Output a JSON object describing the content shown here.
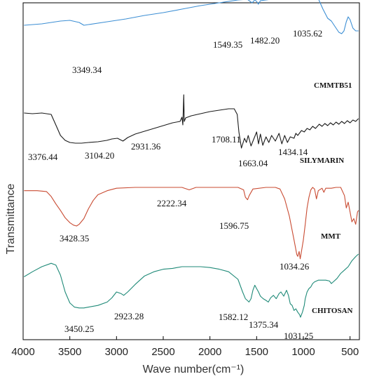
{
  "chart_data": {
    "type": "line",
    "xlabel": "Wave number(cm⁻¹)",
    "ylabel": "Transmittance",
    "xlim": [
      4000,
      400
    ],
    "x_reversed": true,
    "x_ticks": [
      4000,
      3500,
      3000,
      2500,
      2000,
      1500,
      1000,
      500
    ],
    "x_tick_labels": [
      "4000",
      "3500",
      "3000",
      "2500",
      "2000",
      "1500",
      "1000",
      "500"
    ],
    "y_ticks_shown": false,
    "grid": false,
    "legend": "none",
    "series": [
      {
        "name": "CMMTB51",
        "color": "#3d8fd4",
        "points": [
          [
            3990,
            0.72
          ],
          [
            3800,
            0.74
          ],
          [
            3600,
            0.78
          ],
          [
            3500,
            0.79
          ],
          [
            3400,
            0.76
          ],
          [
            3349,
            0.72
          ],
          [
            3300,
            0.73
          ],
          [
            3100,
            0.77
          ],
          [
            2900,
            0.81
          ],
          [
            2700,
            0.86
          ],
          [
            2500,
            0.9
          ],
          [
            2300,
            0.95
          ],
          [
            2100,
            1.0
          ],
          [
            1900,
            1.04
          ],
          [
            1700,
            1.08
          ],
          [
            1600,
            1.09
          ],
          [
            1549,
            1.04
          ],
          [
            1520,
            1.08
          ],
          [
            1500,
            1.06
          ],
          [
            1482,
            1.02
          ],
          [
            1460,
            1.07
          ],
          [
            1400,
            1.08
          ],
          [
            1300,
            1.1
          ],
          [
            1200,
            1.12
          ],
          [
            1100,
            1.14
          ],
          [
            1036,
            1.16
          ],
          [
            1000,
            1.2
          ],
          [
            960,
            1.24
          ],
          [
            920,
            1.23
          ],
          [
            880,
            1.18
          ],
          [
            840,
            1.1
          ],
          [
            790,
            0.95
          ],
          [
            740,
            0.82
          ],
          [
            700,
            0.78
          ],
          [
            660,
            0.7
          ],
          [
            620,
            0.62
          ],
          [
            590,
            0.6
          ],
          [
            565,
            0.64
          ],
          [
            540,
            0.77
          ],
          [
            520,
            0.84
          ],
          [
            500,
            0.8
          ],
          [
            470,
            0.68
          ],
          [
            440,
            0.64
          ],
          [
            410,
            0.64
          ]
        ],
        "peak_labels": [
          "3349.34",
          "1549.35",
          "1482.20",
          "1035.62"
        ]
      },
      {
        "name": "SILYMARIN",
        "color": "#1a1a1a",
        "points": [
          [
            3990,
            0.72
          ],
          [
            3900,
            0.71
          ],
          [
            3800,
            0.72
          ],
          [
            3700,
            0.7
          ],
          [
            3650,
            0.55
          ],
          [
            3600,
            0.4
          ],
          [
            3550,
            0.33
          ],
          [
            3500,
            0.3
          ],
          [
            3440,
            0.29
          ],
          [
            3376,
            0.29
          ],
          [
            3300,
            0.3
          ],
          [
            3200,
            0.31
          ],
          [
            3104,
            0.33
          ],
          [
            3050,
            0.35
          ],
          [
            2990,
            0.36
          ],
          [
            2931,
            0.32
          ],
          [
            2880,
            0.37
          ],
          [
            2800,
            0.42
          ],
          [
            2700,
            0.46
          ],
          [
            2600,
            0.5
          ],
          [
            2500,
            0.54
          ],
          [
            2400,
            0.58
          ],
          [
            2320,
            0.6
          ],
          [
            2300,
            0.66
          ],
          [
            2290,
            0.55
          ],
          [
            2280,
            0.98
          ],
          [
            2275,
            0.6
          ],
          [
            2260,
            0.65
          ],
          [
            2200,
            0.68
          ],
          [
            2100,
            0.71
          ],
          [
            2000,
            0.74
          ],
          [
            1900,
            0.76
          ],
          [
            1800,
            0.78
          ],
          [
            1740,
            0.78
          ],
          [
            1708,
            0.7
          ],
          [
            1690,
            0.45
          ],
          [
            1663,
            0.22
          ],
          [
            1630,
            0.36
          ],
          [
            1610,
            0.3
          ],
          [
            1590,
            0.4
          ],
          [
            1560,
            0.25
          ],
          [
            1530,
            0.35
          ],
          [
            1500,
            0.45
          ],
          [
            1480,
            0.28
          ],
          [
            1460,
            0.42
          ],
          [
            1434,
            0.26
          ],
          [
            1400,
            0.38
          ],
          [
            1370,
            0.3
          ],
          [
            1340,
            0.4
          ],
          [
            1300,
            0.32
          ],
          [
            1260,
            0.43
          ],
          [
            1230,
            0.28
          ],
          [
            1200,
            0.4
          ],
          [
            1170,
            0.3
          ],
          [
            1140,
            0.38
          ],
          [
            1100,
            0.36
          ],
          [
            1080,
            0.43
          ],
          [
            1060,
            0.4
          ],
          [
            1020,
            0.47
          ],
          [
            990,
            0.45
          ],
          [
            960,
            0.5
          ],
          [
            930,
            0.48
          ],
          [
            900,
            0.53
          ],
          [
            870,
            0.5
          ],
          [
            830,
            0.56
          ],
          [
            800,
            0.53
          ],
          [
            770,
            0.57
          ],
          [
            740,
            0.54
          ],
          [
            710,
            0.58
          ],
          [
            680,
            0.55
          ],
          [
            650,
            0.59
          ],
          [
            620,
            0.56
          ],
          [
            590,
            0.6
          ],
          [
            560,
            0.57
          ],
          [
            530,
            0.61
          ],
          [
            500,
            0.58
          ],
          [
            470,
            0.62
          ],
          [
            440,
            0.6
          ],
          [
            410,
            0.64
          ]
        ],
        "peak_labels": [
          "3376.44",
          "3104.20",
          "2931.36",
          "1708.11",
          "1663.04",
          "1434.14"
        ]
      },
      {
        "name": "MMT",
        "color": "#c94b32",
        "points": [
          [
            3990,
            0.96
          ],
          [
            3850,
            0.96
          ],
          [
            3750,
            0.95
          ],
          [
            3700,
            0.89
          ],
          [
            3650,
            0.8
          ],
          [
            3600,
            0.72
          ],
          [
            3550,
            0.63
          ],
          [
            3500,
            0.57
          ],
          [
            3460,
            0.54
          ],
          [
            3428,
            0.53
          ],
          [
            3400,
            0.55
          ],
          [
            3350,
            0.62
          ],
          [
            3300,
            0.74
          ],
          [
            3250,
            0.84
          ],
          [
            3200,
            0.91
          ],
          [
            3100,
            0.96
          ],
          [
            3000,
            0.99
          ],
          [
            2800,
            1.0
          ],
          [
            2600,
            1.0
          ],
          [
            2400,
            1.0
          ],
          [
            2300,
            1.0
          ],
          [
            2222,
            0.97
          ],
          [
            2150,
            1.0
          ],
          [
            2000,
            1.0
          ],
          [
            1800,
            1.0
          ],
          [
            1700,
            1.0
          ],
          [
            1640,
            0.97
          ],
          [
            1620,
            0.88
          ],
          [
            1597,
            0.85
          ],
          [
            1580,
            0.9
          ],
          [
            1540,
            0.98
          ],
          [
            1400,
            1.0
          ],
          [
            1300,
            1.0
          ],
          [
            1250,
            0.98
          ],
          [
            1200,
            0.86
          ],
          [
            1150,
            0.65
          ],
          [
            1100,
            0.36
          ],
          [
            1070,
            0.18
          ],
          [
            1060,
            0.16
          ],
          [
            1045,
            0.22
          ],
          [
            1034,
            0.13
          ],
          [
            1020,
            0.22
          ],
          [
            1000,
            0.36
          ],
          [
            980,
            0.55
          ],
          [
            960,
            0.75
          ],
          [
            940,
            0.88
          ],
          [
            920,
            0.97
          ],
          [
            900,
            1.0
          ],
          [
            880,
            0.98
          ],
          [
            860,
            0.86
          ],
          [
            840,
            0.96
          ],
          [
            800,
            0.99
          ],
          [
            780,
            0.94
          ],
          [
            760,
            0.99
          ],
          [
            700,
            0.99
          ],
          [
            650,
            1.0
          ],
          [
            600,
            1.0
          ],
          [
            560,
            0.9
          ],
          [
            540,
            0.75
          ],
          [
            520,
            0.82
          ],
          [
            500,
            0.7
          ],
          [
            480,
            0.58
          ],
          [
            460,
            0.62
          ],
          [
            440,
            0.55
          ],
          [
            420,
            0.7
          ],
          [
            410,
            0.72
          ]
        ],
        "peak_labels": [
          "3428.35",
          "2222.34",
          "1596.75",
          "1034.26"
        ]
      },
      {
        "name": "CHITOSAN",
        "color": "#1f8a78",
        "points": [
          [
            3990,
            0.78
          ],
          [
            3900,
            0.84
          ],
          [
            3800,
            0.9
          ],
          [
            3700,
            0.94
          ],
          [
            3650,
            0.92
          ],
          [
            3600,
            0.8
          ],
          [
            3550,
            0.6
          ],
          [
            3500,
            0.47
          ],
          [
            3450,
            0.42
          ],
          [
            3400,
            0.41
          ],
          [
            3350,
            0.41
          ],
          [
            3300,
            0.42
          ],
          [
            3200,
            0.44
          ],
          [
            3100,
            0.48
          ],
          [
            3050,
            0.53
          ],
          [
            3000,
            0.6
          ],
          [
            2950,
            0.58
          ],
          [
            2923,
            0.56
          ],
          [
            2880,
            0.6
          ],
          [
            2800,
            0.69
          ],
          [
            2700,
            0.79
          ],
          [
            2600,
            0.84
          ],
          [
            2500,
            0.87
          ],
          [
            2400,
            0.88
          ],
          [
            2300,
            0.9
          ],
          [
            2200,
            0.9
          ],
          [
            2100,
            0.9
          ],
          [
            2000,
            0.89
          ],
          [
            1900,
            0.87
          ],
          [
            1800,
            0.84
          ],
          [
            1700,
            0.75
          ],
          [
            1650,
            0.6
          ],
          [
            1620,
            0.52
          ],
          [
            1600,
            0.5
          ],
          [
            1582,
            0.48
          ],
          [
            1560,
            0.52
          ],
          [
            1540,
            0.62
          ],
          [
            1520,
            0.68
          ],
          [
            1500,
            0.64
          ],
          [
            1480,
            0.6
          ],
          [
            1460,
            0.55
          ],
          [
            1430,
            0.52
          ],
          [
            1400,
            0.5
          ],
          [
            1375,
            0.48
          ],
          [
            1350,
            0.53
          ],
          [
            1320,
            0.56
          ],
          [
            1290,
            0.52
          ],
          [
            1260,
            0.58
          ],
          [
            1240,
            0.6
          ],
          [
            1210,
            0.55
          ],
          [
            1180,
            0.62
          ],
          [
            1160,
            0.56
          ],
          [
            1140,
            0.46
          ],
          [
            1120,
            0.44
          ],
          [
            1100,
            0.38
          ],
          [
            1080,
            0.4
          ],
          [
            1060,
            0.36
          ],
          [
            1040,
            0.33
          ],
          [
            1031,
            0.3
          ],
          [
            1010,
            0.36
          ],
          [
            990,
            0.44
          ],
          [
            980,
            0.52
          ],
          [
            960,
            0.6
          ],
          [
            940,
            0.64
          ],
          [
            920,
            0.66
          ],
          [
            900,
            0.7
          ],
          [
            880,
            0.72
          ],
          [
            840,
            0.74
          ],
          [
            800,
            0.74
          ],
          [
            760,
            0.74
          ],
          [
            720,
            0.73
          ],
          [
            700,
            0.7
          ],
          [
            680,
            0.72
          ],
          [
            640,
            0.76
          ],
          [
            600,
            0.82
          ],
          [
            560,
            0.86
          ],
          [
            520,
            0.9
          ],
          [
            480,
            0.97
          ],
          [
            440,
            1.02
          ],
          [
            410,
            1.05
          ]
        ],
        "peak_labels": [
          "3450.25",
          "2923.28",
          "1582.12",
          "1375.34",
          "1031.25"
        ]
      }
    ]
  }
}
